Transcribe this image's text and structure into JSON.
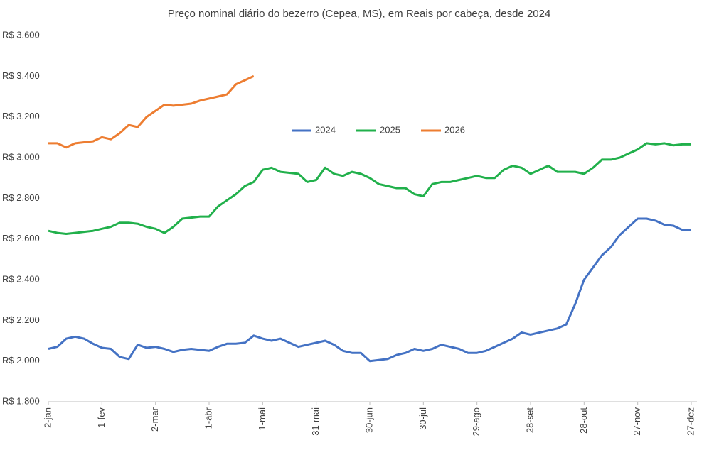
{
  "chart_data": {
    "type": "line",
    "title": "Preço nominal diário do bezerro (Cepea, MS), em Reais por cabeça, desde 2024",
    "categories": [
      "2-jan",
      null,
      null,
      null,
      null,
      null,
      "1-fev",
      null,
      null,
      null,
      null,
      null,
      "2-mar",
      null,
      null,
      null,
      null,
      null,
      "1-abr",
      null,
      null,
      null,
      null,
      null,
      "1-mai",
      null,
      null,
      null,
      null,
      null,
      "31-mai",
      null,
      null,
      null,
      null,
      null,
      "30-jun",
      null,
      null,
      null,
      null,
      null,
      "30-jul",
      null,
      null,
      null,
      null,
      null,
      "29-ago",
      null,
      null,
      null,
      null,
      null,
      "28-set",
      null,
      null,
      null,
      null,
      null,
      "28-out",
      null,
      null,
      null,
      null,
      null,
      "27-nov",
      null,
      null,
      null,
      null,
      null,
      "27-dez"
    ],
    "series": [
      {
        "name": "2024",
        "color": "#4472c4",
        "values": [
          2060,
          2070,
          2110,
          2120,
          2110,
          2085,
          2065,
          2060,
          2020,
          2010,
          2080,
          2065,
          2070,
          2060,
          2045,
          2055,
          2060,
          2055,
          2050,
          2070,
          2085,
          2085,
          2090,
          2125,
          2110,
          2100,
          2110,
          2090,
          2070,
          2080,
          2090,
          2100,
          2080,
          2050,
          2040,
          2040,
          2000,
          2005,
          2010,
          2030,
          2040,
          2060,
          2050,
          2060,
          2080,
          2070,
          2060,
          2040,
          2040,
          2050,
          2070,
          2090,
          2110,
          2140,
          2130,
          2140,
          2150,
          2160,
          2180,
          2280,
          2400,
          2460,
          2520,
          2560,
          2620,
          2660,
          2700,
          2700,
          2690,
          2670,
          2665,
          2645,
          2645
        ]
      },
      {
        "name": "2025",
        "color": "#21b04b",
        "values": [
          2640,
          2630,
          2625,
          2630,
          2635,
          2640,
          2650,
          2660,
          2680,
          2680,
          2675,
          2660,
          2650,
          2630,
          2660,
          2700,
          2705,
          2710,
          2710,
          2760,
          2790,
          2820,
          2860,
          2880,
          2940,
          2950,
          2930,
          2925,
          2920,
          2880,
          2890,
          2950,
          2920,
          2910,
          2930,
          2920,
          2900,
          2870,
          2860,
          2850,
          2850,
          2820,
          2810,
          2870,
          2880,
          2880,
          2890,
          2900,
          2910,
          2900,
          2900,
          2940,
          2960,
          2950,
          2920,
          2940,
          2960,
          2930,
          2930,
          2930,
          2920,
          2950,
          2990,
          2990,
          3000,
          3020,
          3040,
          3070,
          3065,
          3070,
          3060,
          3065,
          3065
        ]
      },
      {
        "name": "2026",
        "color": "#ed7d31",
        "values": [
          3070,
          3070,
          3050,
          3070,
          3075,
          3080,
          3100,
          3090,
          3120,
          3160,
          3150,
          3200,
          3230,
          3260,
          3255,
          3260,
          3265,
          3280,
          3290,
          3300,
          3310,
          3360,
          3380,
          3400,
          null,
          null,
          null,
          null,
          null,
          null,
          null,
          null,
          null,
          null,
          null,
          null,
          null,
          null,
          null,
          null,
          null,
          null,
          null,
          null,
          null,
          null,
          null,
          null,
          null,
          null,
          null,
          null,
          null,
          null,
          null,
          null,
          null,
          null,
          null,
          null,
          null,
          null,
          null,
          null,
          null,
          null,
          null,
          null,
          null,
          null,
          null,
          null,
          null
        ]
      }
    ],
    "ylim": [
      1800,
      3600
    ],
    "yticks": [
      {
        "value": 1800,
        "label": "R$ 1.800"
      },
      {
        "value": 2000,
        "label": "R$ 2.000"
      },
      {
        "value": 2200,
        "label": "R$ 2.200"
      },
      {
        "value": 2400,
        "label": "R$ 2.400"
      },
      {
        "value": 2600,
        "label": "R$ 2.600"
      },
      {
        "value": 2800,
        "label": "R$ 2.800"
      },
      {
        "value": 3000,
        "label": "R$ 3.000"
      },
      {
        "value": 3200,
        "label": "R$ 3.200"
      },
      {
        "value": 3400,
        "label": "R$ 3.400"
      },
      {
        "value": 3600,
        "label": "R$ 3.600"
      }
    ],
    "grid": false,
    "legend": "center"
  }
}
